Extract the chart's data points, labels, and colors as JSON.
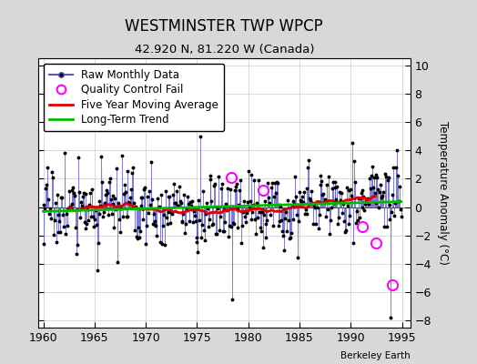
{
  "title": "WESTMINSTER TWP WPCP",
  "subtitle": "42.920 N, 81.220 W (Canada)",
  "ylabel": "Temperature Anomaly (°C)",
  "watermark": "Berkeley Earth",
  "xlim": [
    1959.5,
    1995.8
  ],
  "ylim": [
    -8.5,
    10.5
  ],
  "yticks": [
    -8,
    -6,
    -4,
    -2,
    0,
    2,
    4,
    6,
    8,
    10
  ],
  "xticks": [
    1960,
    1965,
    1970,
    1975,
    1980,
    1985,
    1990,
    1995
  ],
  "bg_color": "#d8d8d8",
  "plot_bg_color": "#ffffff",
  "raw_line_color": "#5555cc",
  "raw_fill_color": "#aaaaee",
  "raw_dot_color": "#000000",
  "moving_avg_color": "#dd0000",
  "trend_color": "#00bb00",
  "qc_fail_color": "#ff00ff",
  "legend_fontsize": 8.5,
  "title_fontsize": 12,
  "subtitle_fontsize": 9.5,
  "tick_fontsize": 9,
  "seed": 17
}
